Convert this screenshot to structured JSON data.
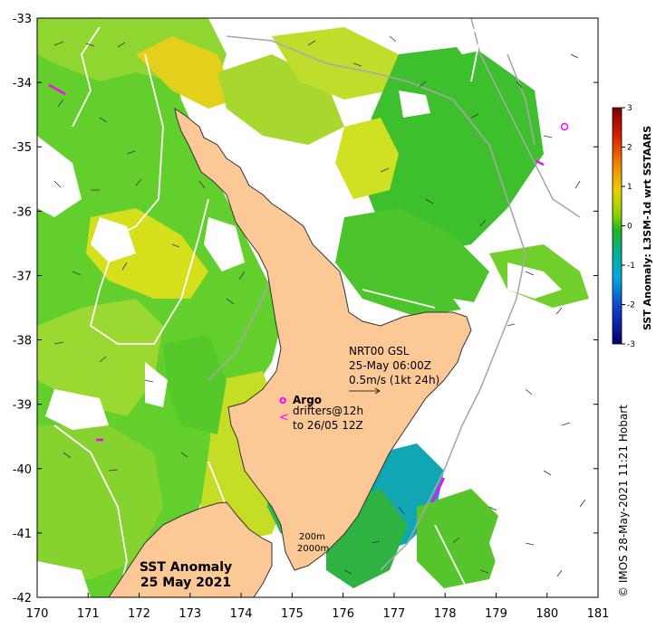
{
  "map": {
    "title_line1": "SST Anomaly",
    "title_line2": "25 May 2021",
    "x_ticks": [
      "170",
      "171",
      "172",
      "173",
      "174",
      "175",
      "176",
      "177",
      "178",
      "179",
      "180",
      "181"
    ],
    "y_ticks": [
      "-33",
      "-34",
      "-35",
      "-36",
      "-37",
      "-38",
      "-39",
      "-40",
      "-41",
      "-42"
    ],
    "lon_range": [
      170,
      181
    ],
    "lat_range": [
      -42,
      -33
    ],
    "current_legend": {
      "line1": "NRT00 GSL",
      "line2": "25-May 06:00Z",
      "line3": "0.5m/s (1kt 24h)"
    },
    "argo_marker": "o",
    "argo_label": "Argo",
    "drifter_marker": "<",
    "drifter_line1": "drifters@12h",
    "drifter_line2": "to 26/05 12Z",
    "contour_line1": "200m",
    "contour_line2": "2000m",
    "credit": "© IMOS 28-May-2021 11:21 Hobart",
    "colors": {
      "land": "#fbc896",
      "argo": "#ff00ff",
      "anomaly_green": "#5fcf2a",
      "anomaly_yellow": "#d9e21a"
    }
  },
  "colorbar": {
    "label": "SST Anomaly: L3SM-1d wrt SSTAARS",
    "ticks": [
      "3",
      "2",
      "1",
      "0",
      "-1",
      "-2",
      "-3"
    ],
    "range": [
      -3,
      3
    ]
  }
}
